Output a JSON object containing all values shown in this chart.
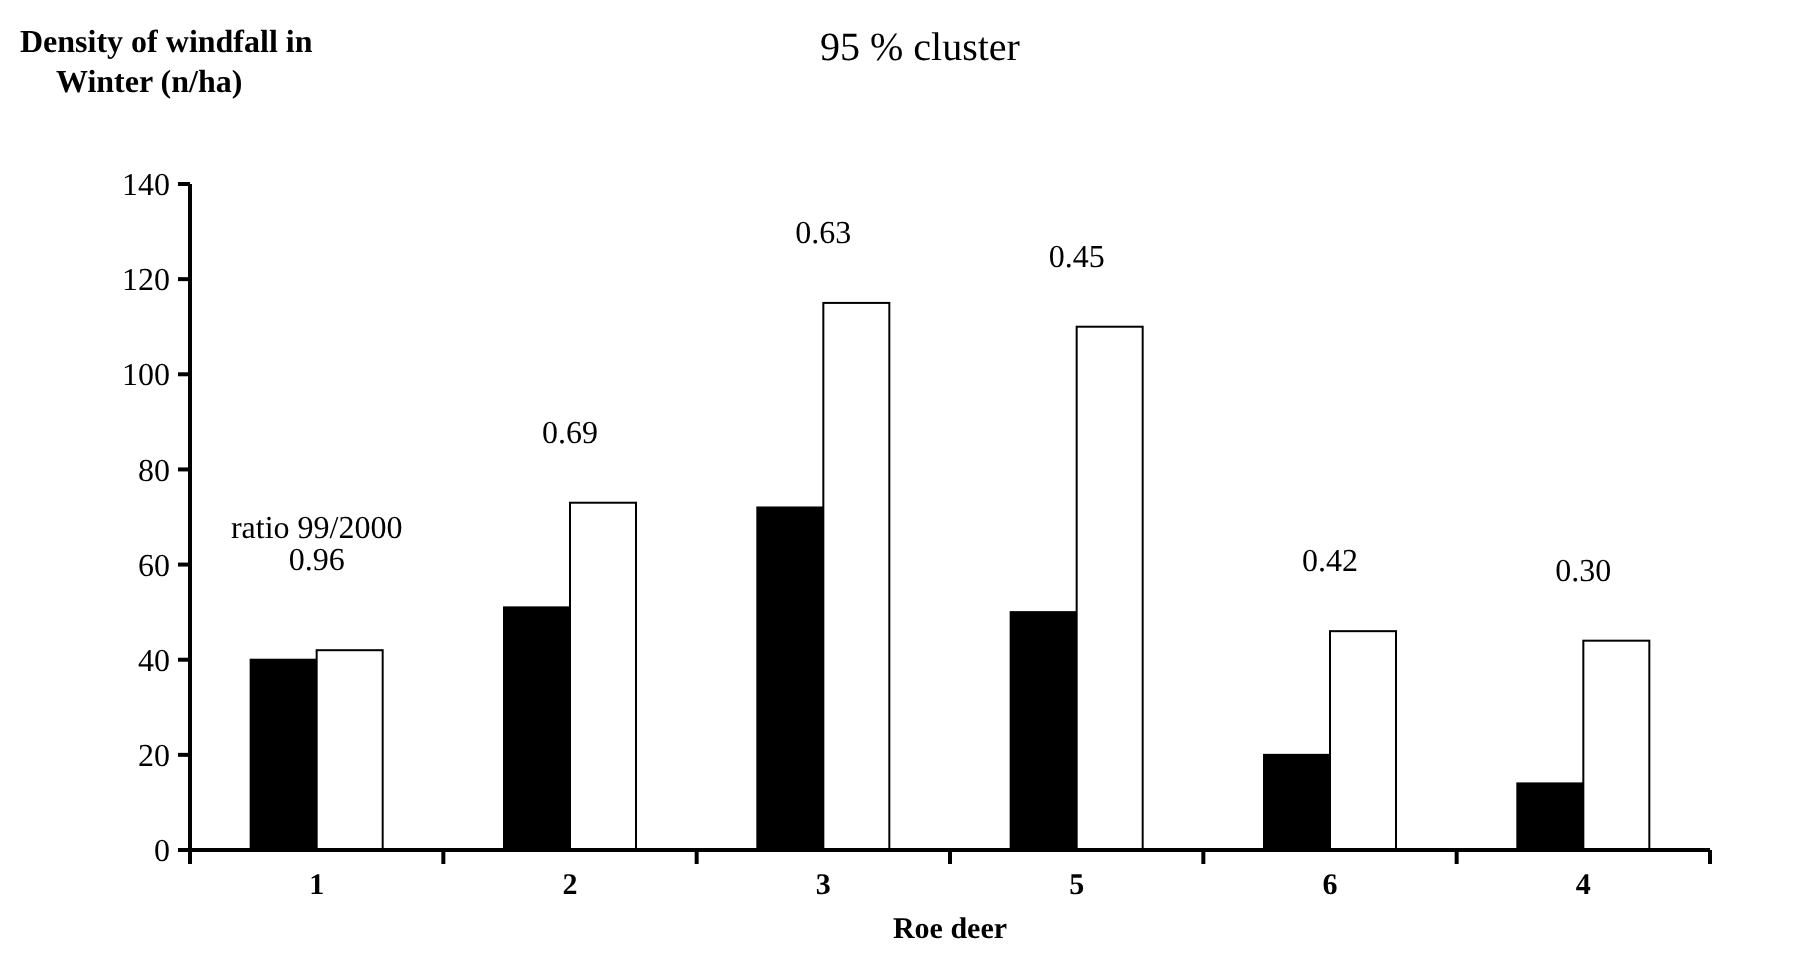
{
  "chart_data": {
    "type": "bar",
    "title": "95 % cluster",
    "ylabel": "Density of windfall in Winter (n/ha)",
    "xlabel": "Roe deer",
    "categories": [
      "1",
      "2",
      "3",
      "5",
      "6",
      "4"
    ],
    "series": [
      {
        "color": "#000000",
        "values": [
          40,
          51,
          72,
          50,
          20,
          14
        ]
      },
      {
        "color": "#ffffff",
        "values": [
          42,
          73,
          115,
          110,
          46,
          44
        ]
      }
    ],
    "ylim": [
      0,
      140
    ],
    "yticks": [
      0,
      20,
      40,
      60,
      80,
      100,
      120,
      140
    ],
    "grid": false,
    "annotations": [
      "ratio 99/2000",
      "0.96",
      "0.69",
      "0.63",
      "0.45",
      "0.42",
      "0.30"
    ]
  }
}
